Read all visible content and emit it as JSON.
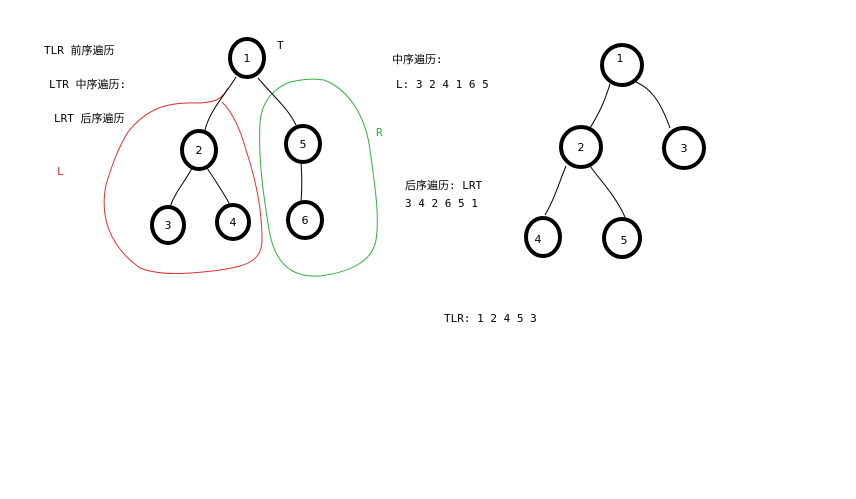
{
  "notes": {
    "tlr": "TLR  前序遍历",
    "ltr": "LTR  中序遍历:",
    "lrt": "LRT  后序遍历",
    "t_label": "T",
    "l_label": "L",
    "r_label": "R",
    "inorder_title": "中序遍历:",
    "inorder_seq": "L: 3 2 4  1  6 5",
    "postorder_title": "后序遍历:  LRT",
    "postorder_seq": "3  4  2  6  5 1",
    "preorder_seq": "TLR: 1 2  4  5  3"
  },
  "tree1": {
    "nodes": [
      {
        "id": "t1n1",
        "label": "1"
      },
      {
        "id": "t1n2",
        "label": "2"
      },
      {
        "id": "t1n5",
        "label": "5"
      },
      {
        "id": "t1n3",
        "label": "3"
      },
      {
        "id": "t1n4",
        "label": "4"
      },
      {
        "id": "t1n6",
        "label": "6"
      }
    ]
  },
  "tree2": {
    "nodes": [
      {
        "id": "t2n1",
        "label": "1"
      },
      {
        "id": "t2n2",
        "label": "2"
      },
      {
        "id": "t2n3",
        "label": "3"
      },
      {
        "id": "t2n4",
        "label": "4"
      },
      {
        "id": "t2n5",
        "label": "5"
      }
    ]
  },
  "colors": {
    "left_subtree": "#e03030",
    "right_subtree": "#30b040",
    "ink": "#000000"
  }
}
